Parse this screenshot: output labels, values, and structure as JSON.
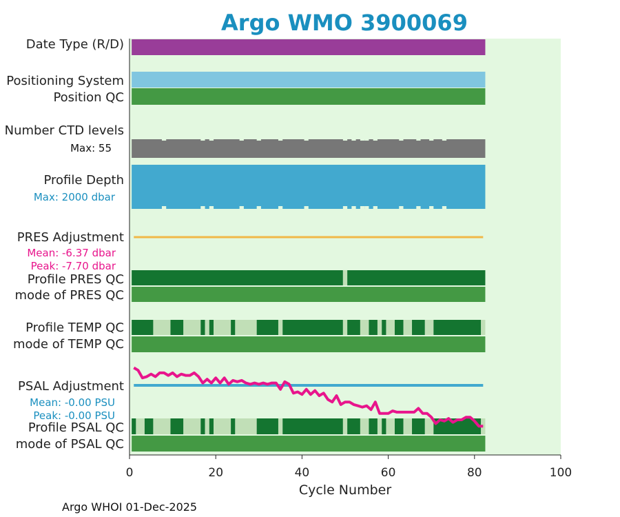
{
  "chart_data": {
    "type": "bar",
    "title": "Argo WMO 3900069",
    "xlabel": "Cycle Number",
    "xlim": [
      0,
      100
    ],
    "xticks": [
      "0",
      "20",
      "40",
      "60",
      "80",
      "100"
    ],
    "footer": "Argo WHOI 01-Dec-2025",
    "last_cycle": 82,
    "colors": {
      "background": "#e3f8e0",
      "date_type": "#993d99",
      "positioning": "#80c6e0",
      "qc_good": "#449944",
      "qc_dark": "#147530",
      "qc_light": "#c1dfb7",
      "ctd_levels": "#777777",
      "profile_depth": "#42a9cf",
      "pres_adjustment": "#f0b848",
      "psal_adjustment": "#42a9cf",
      "magenta": "#e8158c",
      "title": "#1a8fbf"
    },
    "rows": {
      "date_type": "Date Type (R/D)",
      "positioning_system": "Positioning System",
      "position_qc": "Position QC",
      "ctd_levels": "Number CTD levels",
      "ctd_max": "Max: 55",
      "profile_depth": "Profile Depth",
      "depth_max": "Max: 2000 dbar",
      "pres_adjustment": "PRES Adjustment",
      "pres_mean": "Mean: -6.37 dbar",
      "pres_peak": "Peak: -7.70 dbar",
      "profile_pres_qc": "Profile PRES QC",
      "mode_pres_qc": "mode of PRES QC",
      "profile_temp_qc": "Profile TEMP QC",
      "mode_temp_qc": "mode of TEMP QC",
      "psal_adjustment": "PSAL Adjustment",
      "psal_mean": "Mean: -0.00 PSU",
      "psal_peak": "Peak: -0.00 PSU",
      "profile_psal_qc": "Profile PSAL QC",
      "mode_psal_qc": "mode of PSAL QC"
    },
    "ctd_gap_cycles": [
      8,
      17,
      19,
      26,
      30,
      35,
      41,
      50,
      52,
      54,
      55,
      57,
      63,
      67,
      70,
      73
    ],
    "depth_gap_cycles": [
      8,
      17,
      19,
      26,
      30,
      35,
      41,
      50,
      52,
      54,
      55,
      57,
      63,
      67,
      70,
      73
    ],
    "pres_qc_light_cycles": [
      50
    ],
    "temp_qc_light_cycles": [
      6,
      7,
      8,
      9,
      13,
      14,
      15,
      16,
      18,
      20,
      21,
      22,
      23,
      25,
      26,
      27,
      28,
      29,
      35,
      50,
      54,
      55,
      58,
      60,
      61,
      64,
      65,
      69,
      70,
      82
    ],
    "psal_qc_light_cycles": [
      2,
      3,
      6,
      7,
      8,
      9,
      13,
      14,
      15,
      16,
      18,
      20,
      21,
      22,
      23,
      25,
      26,
      27,
      28,
      29,
      35,
      50,
      54,
      55,
      58,
      60,
      61,
      64,
      65,
      69,
      70,
      82
    ],
    "psal_trend_x": [
      1,
      2,
      3,
      4,
      5,
      6,
      7,
      8,
      9,
      10,
      11,
      12,
      13,
      14,
      15,
      16,
      17,
      18,
      19,
      20,
      21,
      22,
      23,
      24,
      25,
      26,
      27,
      28,
      29,
      30,
      31,
      32,
      33,
      34,
      35,
      36,
      37,
      38,
      39,
      40,
      41,
      42,
      43,
      44,
      45,
      46,
      47,
      48,
      49,
      50,
      51,
      52,
      53,
      54,
      55,
      56,
      57,
      58,
      59,
      60,
      61,
      62,
      63,
      64,
      65,
      66,
      67,
      68,
      69,
      70,
      71,
      72,
      73,
      74,
      75,
      76,
      77,
      78,
      79,
      80,
      81,
      82
    ],
    "psal_trend_y": [
      0.94,
      0.9,
      0.78,
      0.8,
      0.84,
      0.8,
      0.86,
      0.86,
      0.82,
      0.86,
      0.8,
      0.84,
      0.82,
      0.82,
      0.86,
      0.8,
      0.7,
      0.76,
      0.7,
      0.78,
      0.7,
      0.78,
      0.68,
      0.74,
      0.72,
      0.74,
      0.7,
      0.68,
      0.7,
      0.68,
      0.7,
      0.68,
      0.7,
      0.7,
      0.6,
      0.72,
      0.68,
      0.54,
      0.56,
      0.52,
      0.6,
      0.52,
      0.58,
      0.5,
      0.54,
      0.44,
      0.4,
      0.5,
      0.36,
      0.4,
      0.4,
      0.36,
      0.34,
      0.32,
      0.34,
      0.28,
      0.4,
      0.22,
      0.22,
      0.22,
      0.26,
      0.24,
      0.24,
      0.24,
      0.24,
      0.24,
      0.3,
      0.22,
      0.22,
      0.16,
      0.06,
      0.12,
      0.1,
      0.14,
      0.08,
      0.12,
      0.12,
      0.16,
      0.16,
      0.1,
      0.02,
      0.02
    ]
  }
}
